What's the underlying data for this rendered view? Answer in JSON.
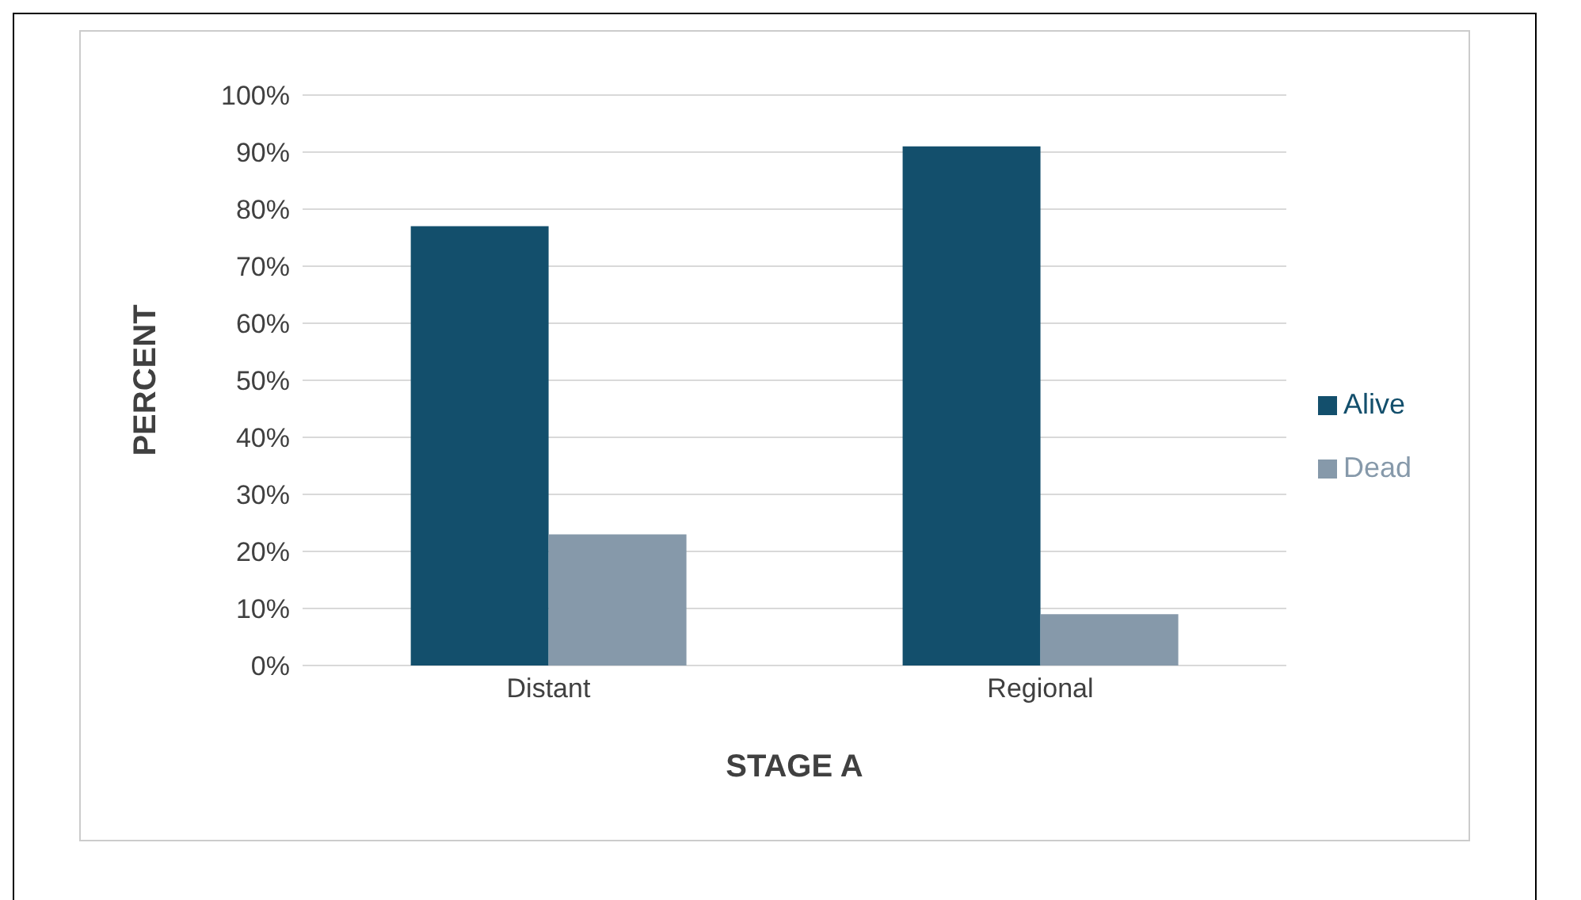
{
  "chart_data": {
    "type": "bar",
    "xlabel": "STAGE A",
    "ylabel": "PERCENT",
    "categories": [
      "Distant",
      "Regional"
    ],
    "series": [
      {
        "name": "Alive",
        "color": "#134f6c",
        "values": [
          77,
          91
        ]
      },
      {
        "name": "Dead",
        "color": "#8699aa",
        "values": [
          23,
          9
        ]
      }
    ],
    "ylim": [
      0,
      100
    ],
    "yticks": [
      {
        "value": 0,
        "label": "0%"
      },
      {
        "value": 10,
        "label": "10%"
      },
      {
        "value": 20,
        "label": "20%"
      },
      {
        "value": 30,
        "label": "30%"
      },
      {
        "value": 40,
        "label": "40%"
      },
      {
        "value": 50,
        "label": "50%"
      },
      {
        "value": 60,
        "label": "60%"
      },
      {
        "value": 70,
        "label": "70%"
      },
      {
        "value": 80,
        "label": "80%"
      },
      {
        "value": 90,
        "label": "90%"
      },
      {
        "value": 100,
        "label": "100%"
      }
    ],
    "grid": "y",
    "legend": "right"
  }
}
